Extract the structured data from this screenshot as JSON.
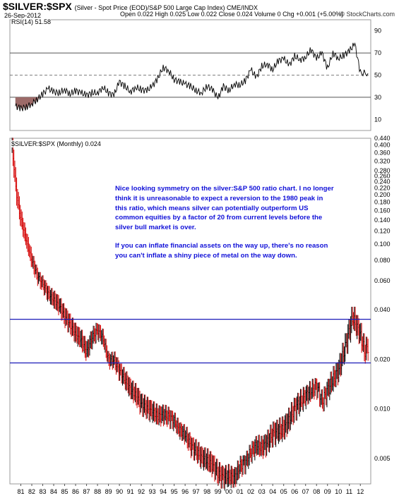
{
  "header": {
    "symbol": "$SILVER:$SPX",
    "description": "(Silver - Spot Price (EOD)/S&P 500 Large Cap Index) CME/INDX",
    "date": "26-Sep-2012",
    "ohlc": "Open 0.022  High 0.025  Low 0.022  Close 0.024  Volume 0  Chg +0.001 (+5.00%)",
    "brand": "© StockCharts.com"
  },
  "rsi_panel": {
    "label": "RSI(14) 51.58"
  },
  "main_panel": {
    "label": "$SILVER:$SPX (Monthly) 0.024"
  },
  "annotation": {
    "paragraph1": "Nice looking symmetry on the silver:S&P 500 ratio chart. I no longer think it is unreasonable to expect a reversion to the 1980 peak in this ratio, which means silver can potentially outperform US common equities by a factor of 20 from current levels before the silver bull market is over.",
    "paragraph2": "If you can inflate financial assets on the way up, there's no reason you can't inflate a shiny piece of metal on the way down."
  },
  "colors": {
    "up_bar": "#000000",
    "down_bar": "#d40000",
    "rsi_line": "#000000",
    "rsi_oversold_fill": "#9c6a68",
    "channel_line": "#1a1ab8",
    "annotation_text": "#1010d8"
  },
  "chart_data": [
    {
      "type": "line",
      "name": "RSI(14)",
      "ylim": [
        0,
        100
      ],
      "yticks": [
        10,
        30,
        50,
        70,
        90
      ],
      "reference_lines": [
        30,
        50,
        70
      ],
      "x": [
        1980.5,
        1981,
        1981.5,
        1982,
        1982.5,
        1983,
        1983.5,
        1984,
        1984.5,
        1985,
        1985.5,
        1986,
        1986.5,
        1987,
        1987.5,
        1988,
        1988.5,
        1989,
        1989.5,
        1990,
        1990.5,
        1991,
        1991.5,
        1992,
        1992.5,
        1993,
        1993.5,
        1994,
        1994.5,
        1995,
        1995.5,
        1996,
        1996.5,
        1997,
        1997.5,
        1998,
        1998.5,
        1999,
        1999.5,
        2000,
        2000.5,
        2001,
        2001.5,
        2002,
        2002.5,
        2003,
        2003.5,
        2004,
        2004.5,
        2005,
        2005.5,
        2006,
        2006.5,
        2007,
        2007.5,
        2008,
        2008.5,
        2009,
        2009.5,
        2010,
        2010.5,
        2011,
        2011.5,
        2012,
        2012.7
      ],
      "values": [
        22,
        20,
        21,
        24,
        28,
        33,
        38,
        35,
        34,
        37,
        33,
        36,
        34,
        32,
        34,
        34,
        39,
        34,
        32,
        44,
        40,
        35,
        39,
        37,
        36,
        40,
        47,
        57,
        54,
        46,
        44,
        42,
        40,
        36,
        34,
        40,
        37,
        29,
        40,
        36,
        42,
        41,
        45,
        55,
        48,
        58,
        60,
        55,
        63,
        65,
        59,
        67,
        64,
        66,
        73,
        65,
        70,
        56,
        70,
        65,
        68,
        72,
        78,
        52,
        51.58
      ]
    },
    {
      "type": "line",
      "name": "$SILVER:$SPX (Monthly)",
      "scale": "log",
      "ylim": [
        0.0035,
        0.44
      ],
      "yticks": [
        0.005,
        0.01,
        0.02,
        0.04,
        0.06,
        0.08,
        0.1,
        0.12,
        0.14,
        0.16,
        0.18,
        0.2,
        0.22,
        0.24,
        0.26,
        0.28,
        0.32,
        0.36,
        0.4,
        0.44
      ],
      "xticks": [
        "81",
        "82",
        "83",
        "84",
        "85",
        "86",
        "87",
        "88",
        "89",
        "90",
        "91",
        "92",
        "93",
        "94",
        "95",
        "96",
        "97",
        "98",
        "99",
        "00",
        "01",
        "02",
        "03",
        "04",
        "05",
        "06",
        "07",
        "08",
        "09",
        "10",
        "11",
        "12"
      ],
      "horizontal_lines": [
        0.035,
        0.019
      ],
      "x": [
        1980.2,
        1980.6,
        1981,
        1981.5,
        1982,
        1982.5,
        1983,
        1983.5,
        1984,
        1984.5,
        1985,
        1985.5,
        1986,
        1986.5,
        1987,
        1987.5,
        1988,
        1988.5,
        1989,
        1989.5,
        1990,
        1990.5,
        1991,
        1991.5,
        1992,
        1992.5,
        1993,
        1993.5,
        1994,
        1994.5,
        1995,
        1995.5,
        1996,
        1996.5,
        1997,
        1997.5,
        1998,
        1998.5,
        1999,
        1999.5,
        2000,
        2000.5,
        2001,
        2001.5,
        2002,
        2002.5,
        2003,
        2003.5,
        2004,
        2004.5,
        2005,
        2005.5,
        2006,
        2006.5,
        2007,
        2007.5,
        2008,
        2008.5,
        2009,
        2009.5,
        2010,
        2010.5,
        2011,
        2011.3,
        2011.6,
        2012,
        2012.4,
        2012.7
      ],
      "values": [
        0.38,
        0.2,
        0.14,
        0.105,
        0.08,
        0.065,
        0.058,
        0.05,
        0.046,
        0.042,
        0.036,
        0.032,
        0.028,
        0.026,
        0.022,
        0.027,
        0.03,
        0.027,
        0.02,
        0.02,
        0.017,
        0.015,
        0.013,
        0.012,
        0.0105,
        0.01,
        0.0095,
        0.009,
        0.0092,
        0.009,
        0.0085,
        0.0075,
        0.007,
        0.006,
        0.0055,
        0.005,
        0.0048,
        0.0045,
        0.004,
        0.0038,
        0.0039,
        0.0038,
        0.0045,
        0.0048,
        0.0055,
        0.006,
        0.0058,
        0.0062,
        0.007,
        0.0072,
        0.0075,
        0.0085,
        0.01,
        0.011,
        0.012,
        0.013,
        0.014,
        0.011,
        0.013,
        0.015,
        0.017,
        0.022,
        0.03,
        0.036,
        0.032,
        0.028,
        0.022,
        0.024
      ]
    }
  ]
}
